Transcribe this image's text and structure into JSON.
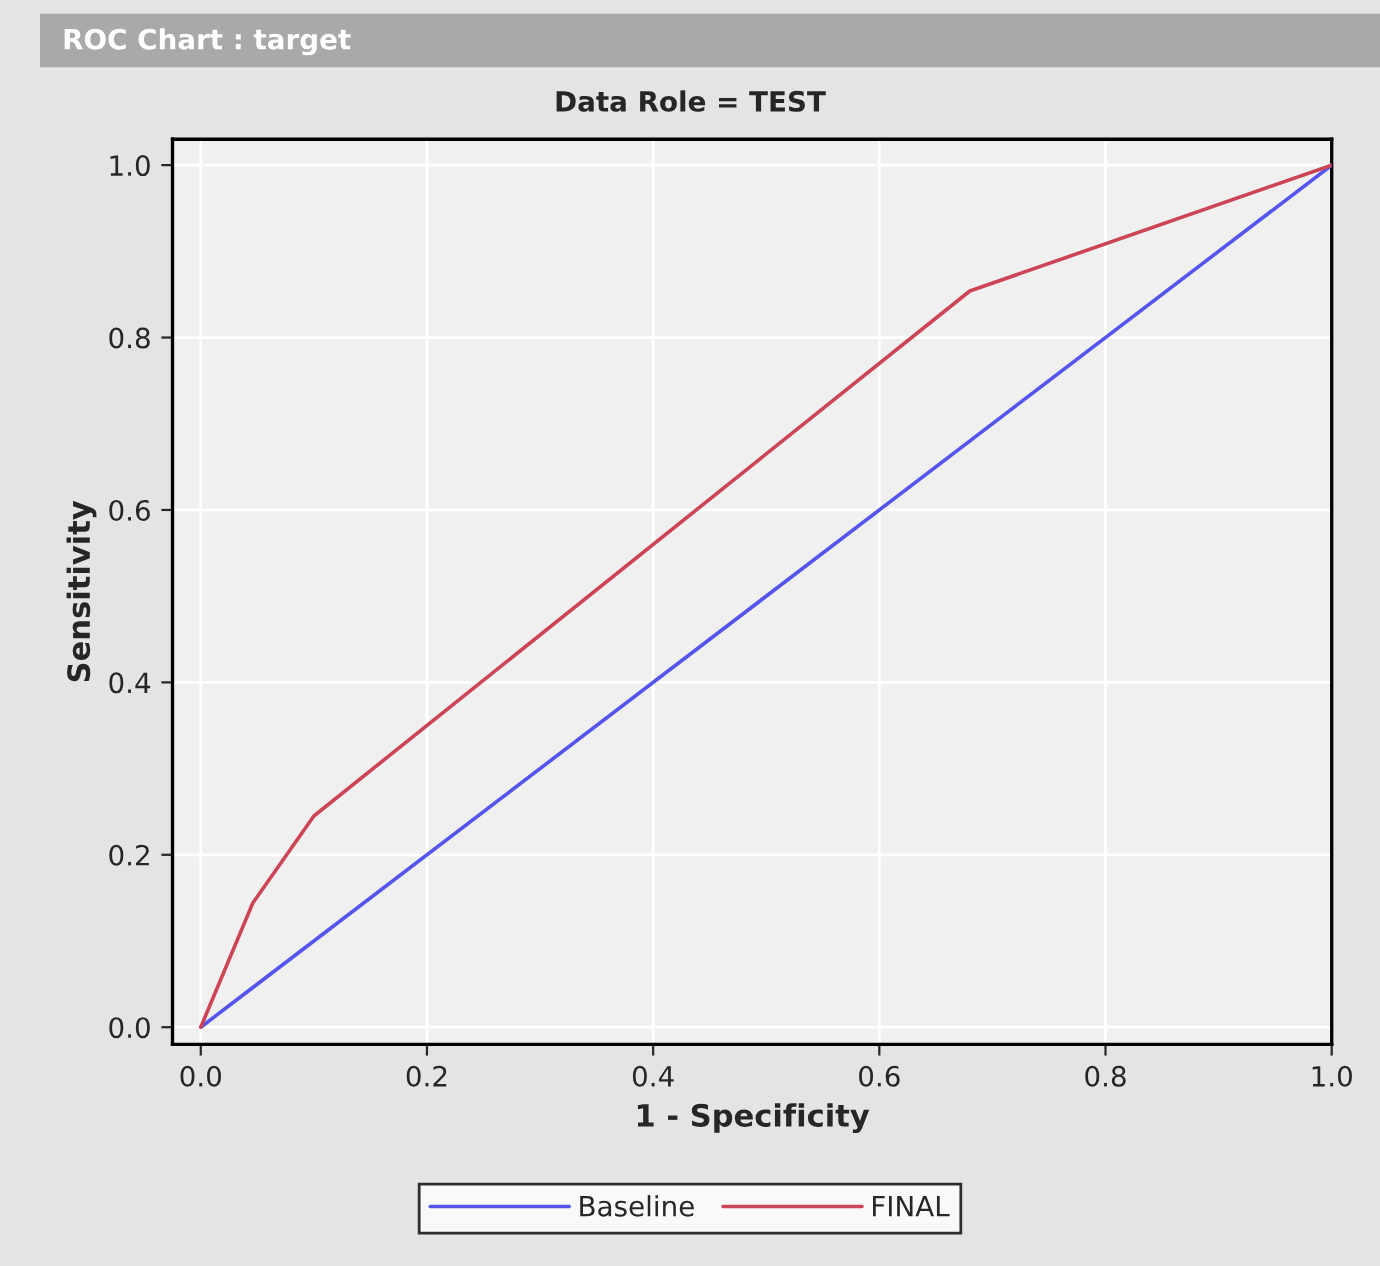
{
  "chart_data": {
    "type": "line",
    "title": "ROC Chart : target",
    "subtitle": "Data Role = TEST",
    "xlabel": "1 - Specificity",
    "ylabel": "Sensitivity",
    "series": [
      {
        "name": "Baseline",
        "color": "#5555ee",
        "x": [
          0,
          1
        ],
        "values": [
          0,
          1
        ]
      },
      {
        "name": "FINAL",
        "color": "#cc4455",
        "x": [
          0,
          0.046,
          0.1,
          0.68,
          1
        ],
        "values": [
          0,
          0.144,
          0.245,
          0.854,
          1
        ]
      }
    ],
    "xlim": [
      -0.025,
      1.0
    ],
    "ylim": [
      -0.02,
      1.03
    ],
    "xticks": [
      {
        "value": 0,
        "label": "0.0"
      },
      0.2,
      0.4,
      0.6,
      0.8,
      {
        "value": 1,
        "label": "1.0"
      }
    ],
    "yticks": [
      {
        "value": 0,
        "label": "0.0"
      },
      0.2,
      0.4,
      0.6,
      0.8,
      {
        "value": 1,
        "label": "1.0"
      }
    ],
    "grid": true,
    "legend": "bottom",
    "marker": "none",
    "line_style": "solid"
  }
}
